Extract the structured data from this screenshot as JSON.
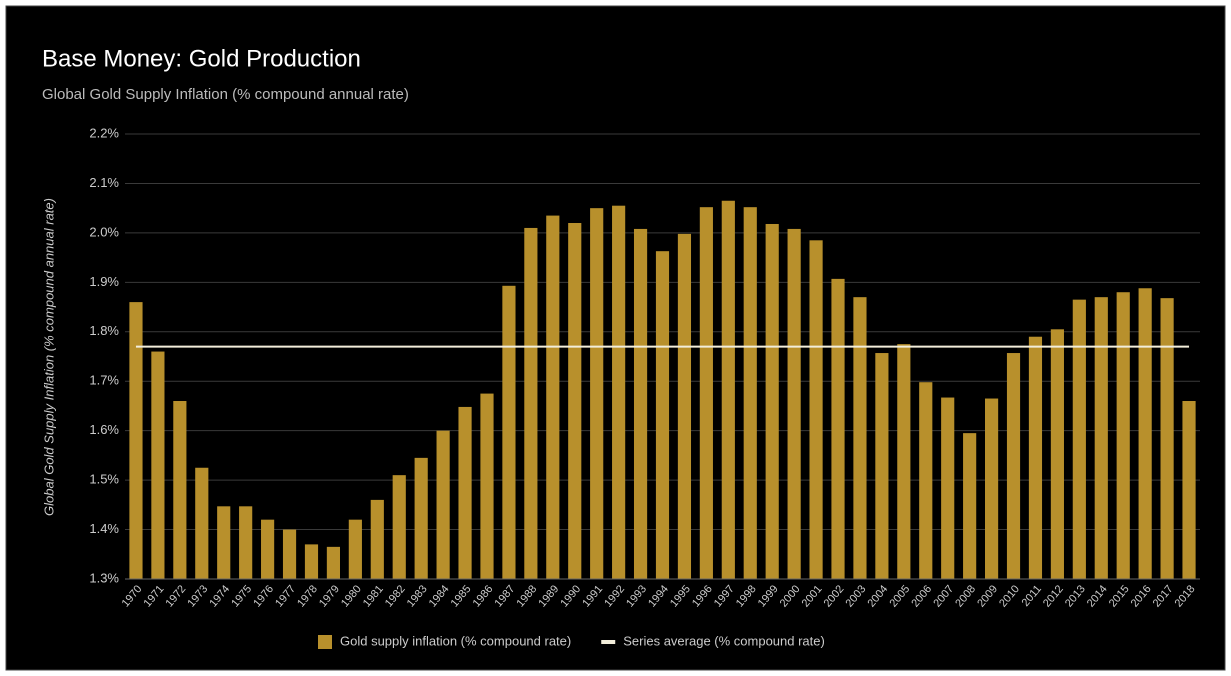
{
  "chart_data": {
    "type": "bar",
    "title": "Base Money: Gold Production",
    "subtitle": "Global Gold Supply Inflation (% compound annual rate)",
    "y_label": "Global Gold Supply Inflation (% compound annual rate)",
    "categories": [
      "1970",
      "1971",
      "1972",
      "1973",
      "1974",
      "1975",
      "1976",
      "1977",
      "1978",
      "1979",
      "1980",
      "1981",
      "1982",
      "1983",
      "1984",
      "1985",
      "1986",
      "1987",
      "1988",
      "1989",
      "1990",
      "1991",
      "1992",
      "1993",
      "1994",
      "1995",
      "1996",
      "1997",
      "1998",
      "1999",
      "2000",
      "2001",
      "2002",
      "2003",
      "2004",
      "2005",
      "2006",
      "2007",
      "2008",
      "2009",
      "2010",
      "2011",
      "2012",
      "2013",
      "2014",
      "2015",
      "2016",
      "2017",
      "2018"
    ],
    "series": [
      {
        "name": "Gold supply inflation (% compound rate)",
        "type": "bar",
        "color": "#b8902c",
        "values": [
          1.86,
          1.76,
          1.66,
          1.525,
          1.447,
          1.447,
          1.42,
          1.4,
          1.37,
          1.365,
          1.42,
          1.46,
          1.51,
          1.545,
          1.6,
          1.648,
          1.675,
          1.893,
          2.01,
          2.035,
          2.02,
          2.05,
          2.055,
          2.008,
          1.963,
          1.998,
          2.052,
          2.065,
          2.052,
          2.018,
          2.008,
          1.985,
          1.907,
          1.87,
          1.757,
          1.775,
          1.698,
          1.667,
          1.595,
          1.665,
          1.757,
          1.79,
          1.805,
          1.865,
          1.87,
          1.88,
          1.888,
          1.868,
          1.66
        ]
      },
      {
        "name": "Series average (% compound rate)",
        "type": "line",
        "color": "#f3eedb",
        "values": [
          1.77,
          1.77,
          1.77,
          1.77,
          1.77,
          1.77,
          1.77,
          1.77,
          1.77,
          1.77,
          1.77,
          1.77,
          1.77,
          1.77,
          1.77,
          1.77,
          1.77,
          1.77,
          1.77,
          1.77,
          1.77,
          1.77,
          1.77,
          1.77,
          1.77,
          1.77,
          1.77,
          1.77,
          1.77,
          1.77,
          1.77,
          1.77,
          1.77,
          1.77,
          1.77,
          1.77,
          1.77,
          1.77,
          1.77,
          1.77,
          1.77,
          1.77,
          1.77,
          1.77,
          1.77,
          1.77,
          1.77,
          1.77,
          1.77
        ]
      }
    ],
    "ylim": [
      1.3,
      2.2
    ],
    "yticks": [
      {
        "value": 1.3,
        "label": "1.3%"
      },
      {
        "value": 1.4,
        "label": "1.4%"
      },
      {
        "value": 1.5,
        "label": "1.5%"
      },
      {
        "value": 1.6,
        "label": "1.6%"
      },
      {
        "value": 1.7,
        "label": "1.7%"
      },
      {
        "value": 1.8,
        "label": "1.8%"
      },
      {
        "value": 1.9,
        "label": "1.9%"
      },
      {
        "value": 2.0,
        "label": "2.0%"
      },
      {
        "value": 2.1,
        "label": "2.1%"
      },
      {
        "value": 2.2,
        "label": "2.2%"
      }
    ],
    "grid": true,
    "legend": "bottom"
  }
}
